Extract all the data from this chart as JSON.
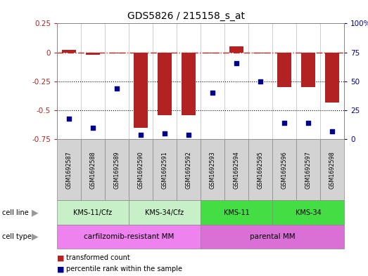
{
  "title": "GDS5826 / 215158_s_at",
  "samples": [
    "GSM1692587",
    "GSM1692588",
    "GSM1692589",
    "GSM1692590",
    "GSM1692591",
    "GSM1692592",
    "GSM1692593",
    "GSM1692594",
    "GSM1692595",
    "GSM1692596",
    "GSM1692597",
    "GSM1692598"
  ],
  "transformed_count": [
    0.02,
    -0.02,
    -0.01,
    -0.65,
    -0.54,
    -0.54,
    -0.01,
    0.05,
    -0.01,
    -0.3,
    -0.3,
    -0.43
  ],
  "percentile_rank": [
    18,
    10,
    44,
    4,
    5,
    4,
    40,
    66,
    50,
    14,
    14,
    7
  ],
  "ylim_left": [
    -0.75,
    0.25
  ],
  "ylim_right": [
    0,
    100
  ],
  "bar_color": "#B22222",
  "dot_color": "#00008B",
  "hline_color": "#CC2222",
  "dotted_line_color": "#000000",
  "cell_line_groups": [
    {
      "label": "KMS-11/Cfz",
      "start": 0,
      "end": 3,
      "color": "#C8F0C8"
    },
    {
      "label": "KMS-34/Cfz",
      "start": 3,
      "end": 6,
      "color": "#C8F0C8"
    },
    {
      "label": "KMS-11",
      "start": 6,
      "end": 9,
      "color": "#44DD44"
    },
    {
      "label": "KMS-34",
      "start": 9,
      "end": 12,
      "color": "#44DD44"
    }
  ],
  "cell_type_groups": [
    {
      "label": "carfilzomib-resistant MM",
      "start": 0,
      "end": 6,
      "color": "#EE82EE"
    },
    {
      "label": "parental MM",
      "start": 6,
      "end": 12,
      "color": "#DA70D6"
    }
  ],
  "legend_items": [
    {
      "color": "#B22222",
      "label": "transformed count"
    },
    {
      "color": "#00008B",
      "label": "percentile rank within the sample"
    }
  ],
  "background_color": "#FFFFFF",
  "plot_bg_color": "#FFFFFF",
  "title_fontsize": 10
}
